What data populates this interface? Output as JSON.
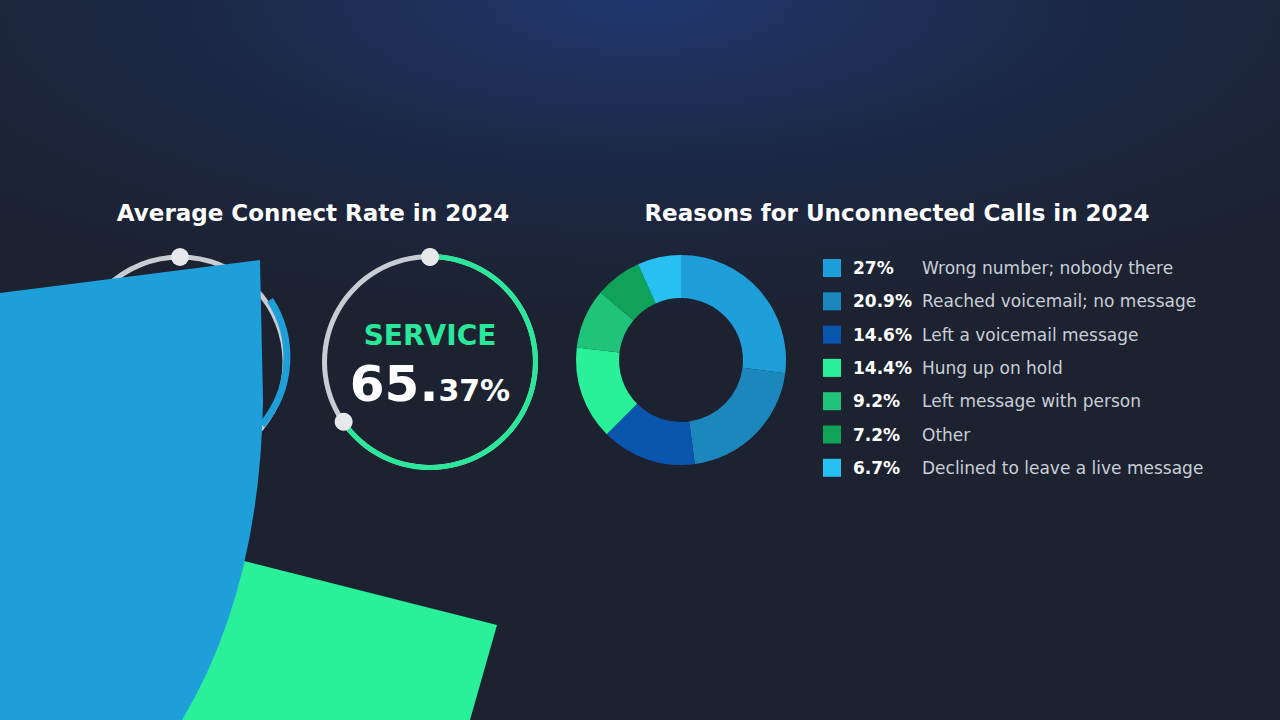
{
  "chart_data": [
    {
      "type": "gauge",
      "title": "Average Connect Rate in 2024",
      "series": [
        {
          "name": "SERVICE",
          "color": "#2ae89a",
          "values": [
            65.37
          ],
          "value_labels": [
            "65.37%"
          ]
        }
      ],
      "ylim": [
        0,
        100
      ],
      "tick_labels": false
    },
    {
      "type": "pie",
      "title": "Reasons for Unconnected Calls in 2024",
      "categories": [
        "Wrong number; nobody there",
        "Reached voicemail; no message",
        "Left a voicemail message",
        "Hung up on hold",
        "Left message with person",
        "Other",
        "Declined to leave a live message"
      ],
      "values": [
        27,
        20.9,
        14.6,
        14.4,
        9.2,
        7.2,
        6.7
      ],
      "value_labels": [
        "27%",
        "20.9%",
        "14.6%",
        "14.4%",
        "9.2%",
        "7.2%",
        "6.7%"
      ],
      "colors": [
        "#1f9fd9",
        "#1b87bd",
        "#0a56ae",
        "#2af09a",
        "#1fc47a",
        "#0fa35a",
        "#27c0f0"
      ],
      "legend": "right",
      "data_labels": false
    }
  ]
}
